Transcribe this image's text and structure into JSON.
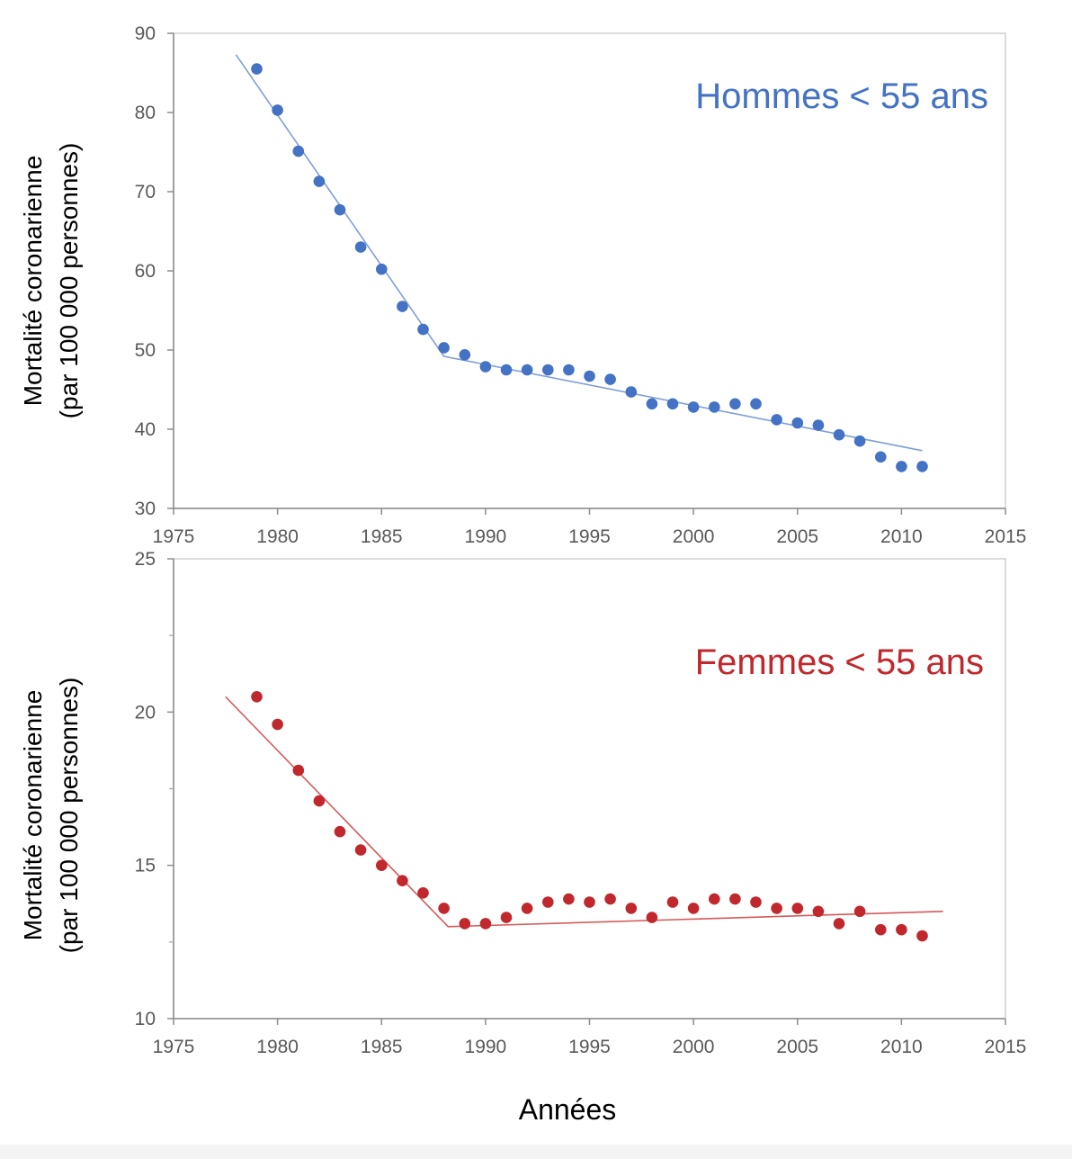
{
  "x_axis_label": "Années",
  "chart_data": [
    {
      "type": "scatter",
      "title": "Hommes < 55 ans",
      "ylabel": [
        "Mortalité coronarienne",
        "(par 100 000 personnes)"
      ],
      "xlim": [
        1975,
        2015
      ],
      "ylim": [
        30,
        90
      ],
      "xticks": [
        1975,
        1980,
        1985,
        1990,
        1995,
        2000,
        2005,
        2010,
        2015
      ],
      "yticks": [
        30,
        40,
        50,
        60,
        70,
        80,
        90
      ],
      "minor_yticks": [],
      "color": "#4472C4",
      "line_color": "#7F9FD6",
      "points": {
        "x": [
          1979,
          1980,
          1981,
          1982,
          1983,
          1984,
          1985,
          1986,
          1987,
          1988,
          1989,
          1990,
          1991,
          1992,
          1993,
          1994,
          1995,
          1996,
          1997,
          1998,
          1999,
          2000,
          2001,
          2002,
          2003,
          2004,
          2005,
          2006,
          2007,
          2008,
          2009,
          2010,
          2011
        ],
        "y": [
          85.5,
          80.3,
          75.1,
          71.3,
          67.7,
          63.0,
          60.2,
          55.5,
          52.6,
          50.3,
          49.4,
          47.9,
          47.5,
          47.5,
          47.5,
          47.5,
          46.7,
          46.3,
          44.7,
          43.2,
          43.2,
          42.8,
          42.8,
          43.2,
          43.2,
          41.2,
          40.8,
          40.5,
          39.3,
          38.5,
          36.5,
          35.3,
          35.3
        ]
      },
      "trend": {
        "x": [
          1978,
          1988,
          2011
        ],
        "y": [
          87.3,
          49.2,
          37.3
        ]
      }
    },
    {
      "type": "scatter",
      "title": "Femmes < 55 ans",
      "ylabel": [
        "Mortalité coronarienne",
        "(par 100 000 personnes)"
      ],
      "xlim": [
        1975,
        2015
      ],
      "ylim": [
        10,
        25
      ],
      "xticks": [
        1975,
        1980,
        1985,
        1990,
        1995,
        2000,
        2005,
        2010,
        2015
      ],
      "yticks": [
        10,
        15,
        20,
        25
      ],
      "minor_yticks": [
        12.5,
        17.5,
        22.5
      ],
      "color": "#C0282D",
      "line_color": "#D55A5A",
      "points": {
        "x": [
          1979,
          1980,
          1981,
          1982,
          1983,
          1984,
          1985,
          1986,
          1987,
          1988,
          1989,
          1990,
          1991,
          1992,
          1993,
          1994,
          1995,
          1996,
          1997,
          1998,
          1999,
          2000,
          2001,
          2002,
          2003,
          2004,
          2005,
          2006,
          2007,
          2008,
          2009,
          2010,
          2011
        ],
        "y": [
          20.5,
          19.6,
          18.1,
          17.1,
          16.1,
          15.5,
          15.0,
          14.5,
          14.1,
          13.6,
          13.1,
          13.1,
          13.3,
          13.6,
          13.8,
          13.9,
          13.8,
          13.9,
          13.6,
          13.3,
          13.8,
          13.6,
          13.9,
          13.9,
          13.8,
          13.6,
          13.6,
          13.5,
          13.1,
          13.5,
          12.9,
          12.9,
          12.7
        ]
      },
      "trend": {
        "x": [
          1977.5,
          1988.2,
          2012
        ],
        "y": [
          20.5,
          13.0,
          13.5
        ]
      }
    }
  ]
}
